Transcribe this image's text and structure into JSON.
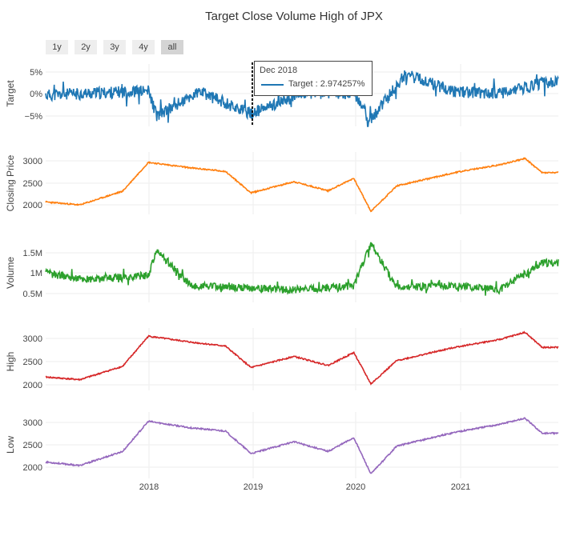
{
  "title": "Target Close Volume High of JPX",
  "range_buttons": [
    "1y",
    "2y",
    "3y",
    "4y",
    "all"
  ],
  "active_range": "all",
  "tooltip": {
    "header": "Dec 2018",
    "series": "Target",
    "value": "2.974257%"
  },
  "colors": {
    "target": "#1f77b4",
    "close": "#ff7f0e",
    "volume": "#2ca02c",
    "high": "#d62728",
    "low": "#9467bd"
  },
  "chart_data": [
    {
      "type": "line",
      "ylabel": "Target",
      "yticks": [
        "5%",
        "0%",
        "−5%"
      ],
      "ylim": [
        -7.5,
        7.5
      ],
      "x": [
        "2017-01",
        "2017-07",
        "2018-01",
        "2018-02",
        "2018-07",
        "2019-01",
        "2019-07",
        "2020-01",
        "2020-03",
        "2020-07",
        "2021-01",
        "2021-07",
        "2021-11"
      ],
      "series": [
        {
          "name": "Target",
          "values": [
            0,
            0.5,
            1,
            -5,
            0.8,
            -4.5,
            0.5,
            0.5,
            -6,
            5,
            0.8,
            0.5,
            3
          ]
        }
      ]
    },
    {
      "type": "line",
      "ylabel": "Closing Price",
      "yticks": [
        "3000",
        "2500",
        "2000"
      ],
      "ylim": [
        1800,
        3250
      ],
      "x": [
        "2017-01",
        "2017-05",
        "2017-10",
        "2018-01",
        "2018-06",
        "2018-10",
        "2019-01",
        "2019-06",
        "2019-10",
        "2020-01",
        "2020-03",
        "2020-06",
        "2021-01",
        "2021-06",
        "2021-09",
        "2021-11"
      ],
      "series": [
        {
          "values": [
            2090,
            2020,
            2340,
            3010,
            2880,
            2800,
            2300,
            2560,
            2350,
            2640,
            1870,
            2460,
            2780,
            2950,
            3100,
            2770
          ]
        }
      ]
    },
    {
      "type": "line",
      "ylabel": "Volume",
      "yticks": [
        "1.5M",
        "1M",
        "0.5M"
      ],
      "ylim": [
        300000,
        1800000
      ],
      "x": [
        "2017-01",
        "2017-06",
        "2018-01",
        "2018-02",
        "2018-06",
        "2019-01",
        "2019-06",
        "2020-01",
        "2020-03",
        "2020-06",
        "2021-01",
        "2021-06",
        "2021-11"
      ],
      "series": [
        {
          "values": [
            1000000,
            850000,
            950000,
            1550000,
            700000,
            650000,
            600000,
            700000,
            1700000,
            650000,
            700000,
            600000,
            1250000
          ]
        }
      ]
    },
    {
      "type": "line",
      "ylabel": "High",
      "yticks": [
        "3000",
        "2500",
        "2000"
      ],
      "ylim": [
        1800,
        3250
      ],
      "x": [
        "2017-01",
        "2017-05",
        "2017-10",
        "2018-01",
        "2018-06",
        "2018-10",
        "2019-01",
        "2019-06",
        "2019-10",
        "2020-01",
        "2020-03",
        "2020-06",
        "2021-01",
        "2021-06",
        "2021-09",
        "2021-11"
      ],
      "series": [
        {
          "values": [
            2110,
            2050,
            2360,
            3060,
            2920,
            2830,
            2330,
            2590,
            2380,
            2680,
            1950,
            2490,
            2810,
            2980,
            3150,
            2800
          ]
        }
      ]
    },
    {
      "type": "line",
      "ylabel": "Low",
      "yticks": [
        "3000",
        "2500",
        "2000"
      ],
      "ylim": [
        1700,
        3200
      ],
      "x": [
        "2017-01",
        "2017-05",
        "2017-10",
        "2018-01",
        "2018-06",
        "2018-10",
        "2019-01",
        "2019-06",
        "2019-10",
        "2020-01",
        "2020-03",
        "2020-06",
        "2021-01",
        "2021-06",
        "2021-09",
        "2021-11"
      ],
      "series": [
        {
          "values": [
            2070,
            1990,
            2310,
            2990,
            2840,
            2770,
            2260,
            2530,
            2310,
            2620,
            1800,
            2430,
            2750,
            2920,
            3060,
            2720
          ]
        }
      ]
    }
  ],
  "xticks": [
    "2018",
    "2019",
    "2020",
    "2021"
  ]
}
